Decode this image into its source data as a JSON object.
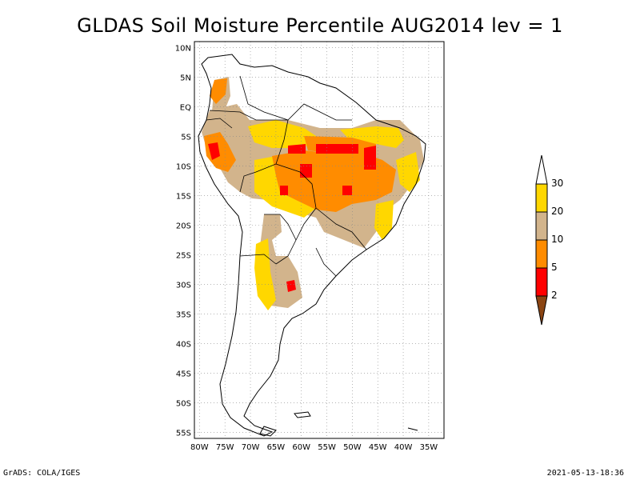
{
  "title": "GLDAS Soil Moisture Percentile AUG2014 lev = 1",
  "footer": {
    "left": "GrADS: COLA/IGES",
    "right": "2021-05-13-18:36"
  },
  "chart_data": {
    "type": "heatmap",
    "title": "GLDAS Soil Moisture Percentile AUG2014 lev = 1",
    "xlim": [
      -81,
      -32
    ],
    "ylim": [
      -56,
      11
    ],
    "x_ticks": [
      "80W",
      "75W",
      "70W",
      "65W",
      "60W",
      "55W",
      "50W",
      "45W",
      "40W",
      "35W"
    ],
    "y_ticks": [
      "10N",
      "5N",
      "EQ",
      "5S",
      "10S",
      "15S",
      "20S",
      "25S",
      "30S",
      "35S",
      "40S",
      "45S",
      "50S",
      "55S"
    ],
    "grid": "dotted",
    "colorbar": {
      "levels": [
        "2",
        "5",
        "10",
        "20",
        "30"
      ],
      "colors": [
        "#8b4513",
        "#ff0000",
        "#ff8c00",
        "#d2b48c",
        "#ffd700",
        "#ffffff"
      ]
    }
  }
}
